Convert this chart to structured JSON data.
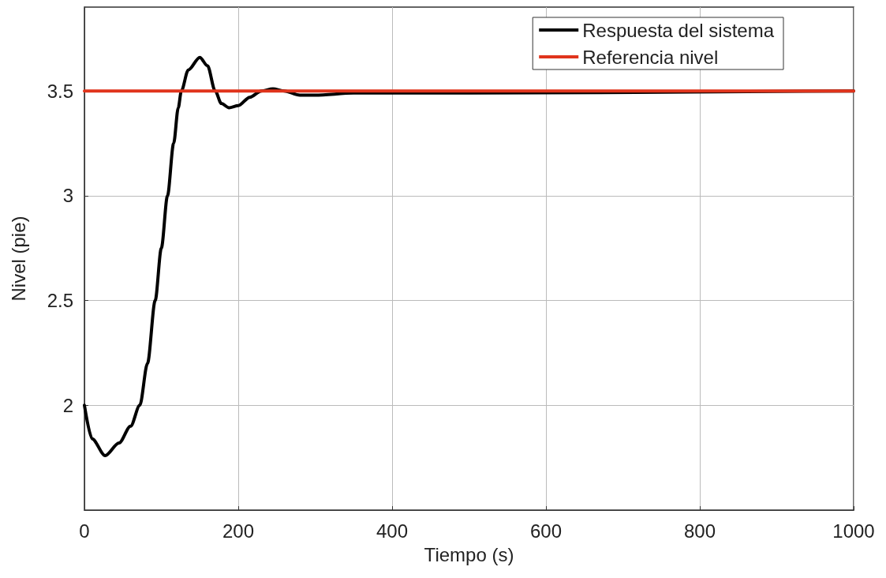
{
  "chart_data": {
    "type": "line",
    "xlabel": "Tiempo (s)",
    "ylabel": "Nivel (pie)",
    "xlim": [
      0,
      1000
    ],
    "xticks": [
      0,
      200,
      400,
      600,
      800,
      1000
    ],
    "ylim": [
      1.5,
      3.9
    ],
    "yticks": [
      2,
      2.5,
      3,
      3.5
    ],
    "grid": true,
    "legend": "top right",
    "marker": "none",
    "line_style": "solid",
    "series": [
      {
        "name": "Respuesta del sistema",
        "color": "#000000",
        "x": [
          0,
          10,
          27,
          45,
          60,
          72,
          82,
          92,
          100,
          108,
          116,
          122,
          126,
          135,
          150,
          160,
          170,
          178,
          188,
          200,
          215,
          230,
          245,
          260,
          280,
          300,
          350,
          400,
          500,
          1000
        ],
        "values": [
          2.0,
          1.84,
          1.76,
          1.82,
          1.9,
          2.0,
          2.2,
          2.5,
          2.75,
          3.0,
          3.25,
          3.42,
          3.5,
          3.6,
          3.66,
          3.62,
          3.5,
          3.44,
          3.42,
          3.43,
          3.47,
          3.5,
          3.51,
          3.5,
          3.48,
          3.48,
          3.49,
          3.49,
          3.49,
          3.5
        ]
      },
      {
        "name": "Referencia nivel",
        "color": "#e0341c",
        "x": [
          0,
          1000
        ],
        "values": [
          3.5,
          3.5
        ]
      }
    ]
  }
}
